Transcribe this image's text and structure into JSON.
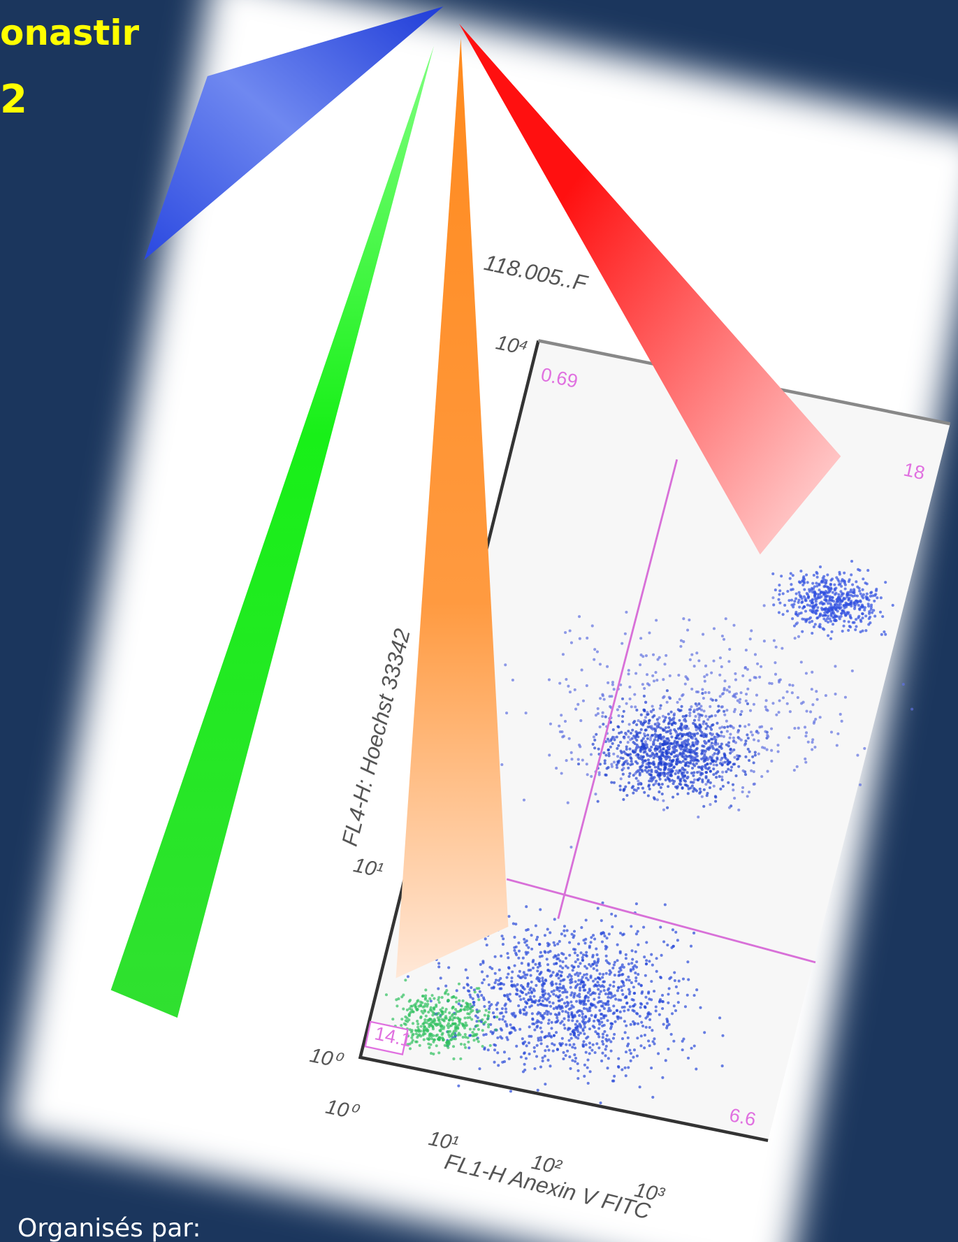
{
  "header": {
    "title_fragment": "onastir",
    "year_fragment": "2"
  },
  "figure": {
    "sample_label": "118.005..F",
    "y_axis_label": "FL4-H: Hoechst 33342",
    "x_axis_label": "FL1-H Anexin V FITC",
    "y_ticks": [
      "10⁴",
      "10¹",
      "10⁰"
    ],
    "x_ticks": [
      "10⁰",
      "10¹",
      "10²",
      "10³"
    ],
    "quadrant_labels": [
      "0.69",
      "18",
      "14.1",
      "6.6"
    ]
  },
  "footer": {
    "organizers_label": "Organisés par:"
  }
}
